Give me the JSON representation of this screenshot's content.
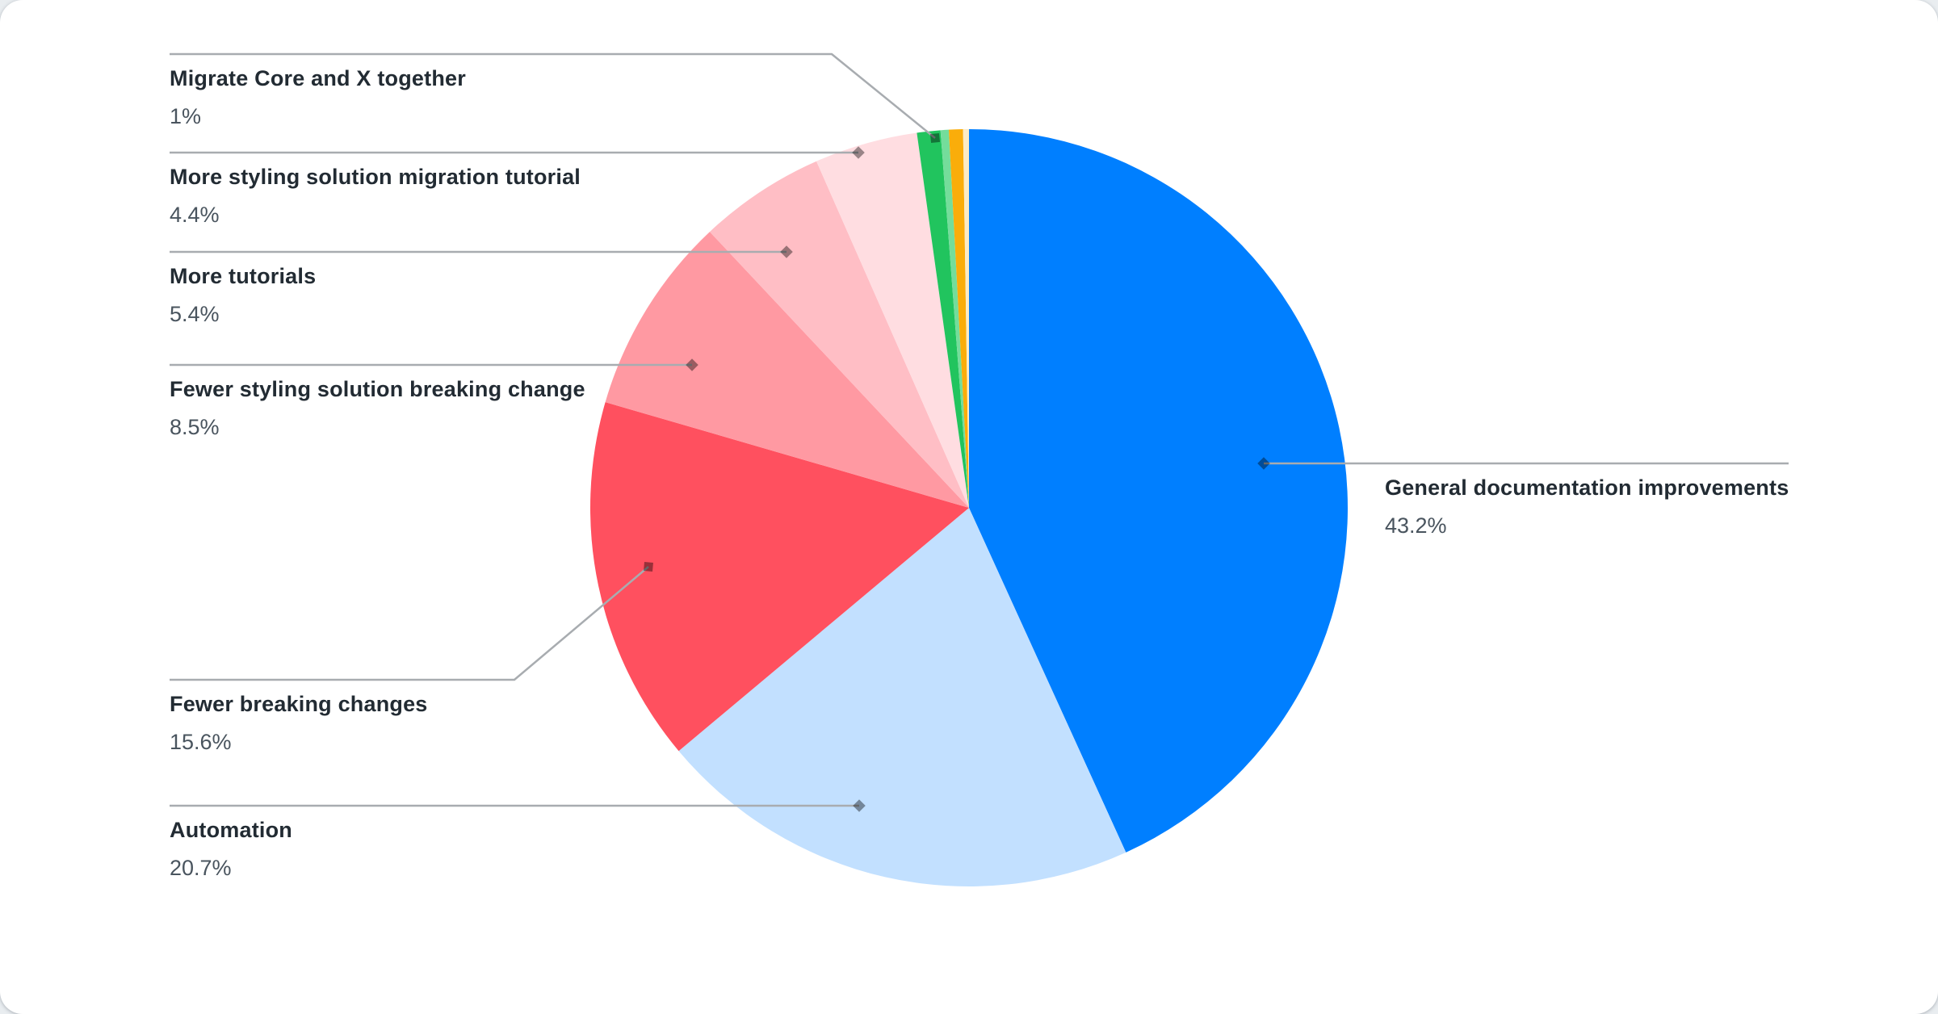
{
  "chart_data": {
    "type": "pie",
    "title": "",
    "legend_position": "none",
    "labels_style": "callout-leader-lines",
    "start_angle_deg": 0,
    "direction": "clockwise",
    "slices": [
      {
        "label": "General documentation improvements",
        "percent": 43.2,
        "percent_display": "43.2%",
        "color": "#007FFF"
      },
      {
        "label": "Automation",
        "percent": 20.7,
        "percent_display": "20.7%",
        "color": "#C2E0FF"
      },
      {
        "label": "Fewer breaking changes",
        "percent": 15.6,
        "percent_display": "15.6%",
        "color": "#FF505F"
      },
      {
        "label": "Fewer styling solution breaking change",
        "percent": 8.5,
        "percent_display": "8.5%",
        "color": "#FF99A2"
      },
      {
        "label": "More tutorials",
        "percent": 5.4,
        "percent_display": "5.4%",
        "color": "#FFBEC5"
      },
      {
        "label": "More styling solution migration tutorial",
        "percent": 4.4,
        "percent_display": "4.4%",
        "color": "#FFDDE1"
      },
      {
        "label": "Migrate Core and X together",
        "percent": 1.0,
        "percent_display": "1%",
        "color": "#21C45E"
      },
      {
        "label": null,
        "percent": 0.35,
        "percent_display": null,
        "color": "#74DD9B"
      },
      {
        "label": null,
        "percent": 0.6,
        "percent_display": null,
        "color": "#FAAD0A"
      },
      {
        "label": null,
        "percent": 0.25,
        "percent_display": null,
        "color": "#FCEBC5"
      }
    ]
  },
  "styles": {
    "card_background": "#FFFFFF",
    "leader_line_color": "#A8ACB0",
    "marker_color": "rgba(0,0,0,0.4)",
    "label_title_color": "#222B33",
    "label_percent_color": "#49545E"
  }
}
